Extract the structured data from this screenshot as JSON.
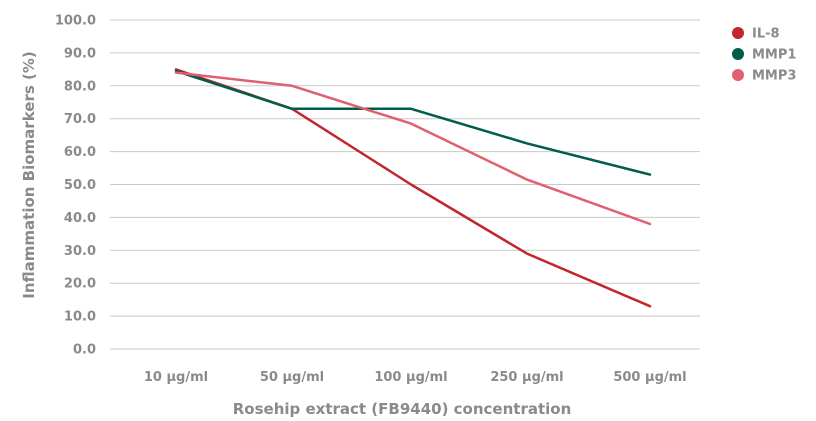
{
  "chart_data": {
    "type": "line",
    "xlabel": "Rosehip extract (FB9440) concentration",
    "ylabel": "Inflammation Biomarkers (%)",
    "categories": [
      "10 µg/ml",
      "50 µg/ml",
      "100 µg/ml",
      "250 µg/ml",
      "500 µg/ml"
    ],
    "ylim": [
      0,
      100
    ],
    "yticks": [
      "0.0",
      "10.0",
      "20.0",
      "30.0",
      "40.0",
      "50.0",
      "60.0",
      "70.0",
      "80.0",
      "90.0",
      "100.0"
    ],
    "grid": true,
    "legend_position": "top-right",
    "series": [
      {
        "name": "IL-8",
        "color": "#c1272d",
        "values": [
          85,
          73,
          50,
          29,
          13
        ]
      },
      {
        "name": "MMP1",
        "color": "#005c4b",
        "values": [
          84.5,
          73,
          73,
          62.5,
          53
        ]
      },
      {
        "name": "MMP3",
        "color": "#e0606e",
        "values": [
          84,
          80,
          68.5,
          51.5,
          38
        ]
      }
    ]
  }
}
